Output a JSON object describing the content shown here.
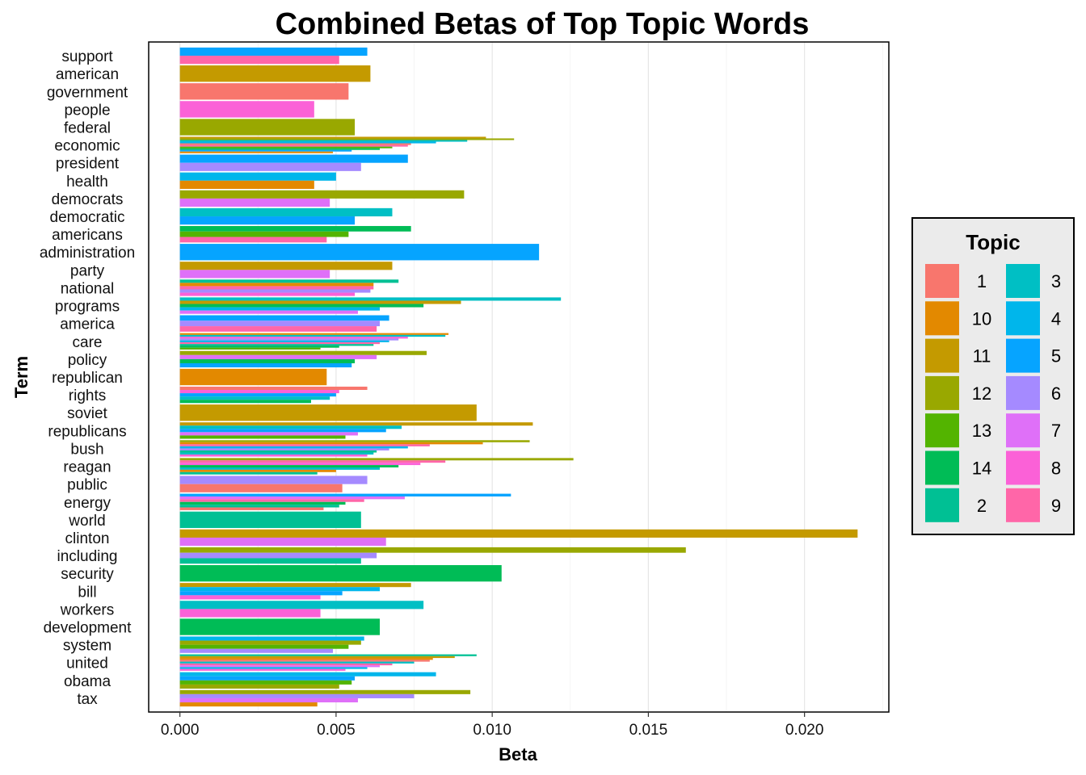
{
  "chart_data": {
    "type": "bar",
    "orientation": "horizontal",
    "title": "Combined Betas of Top Topic Words",
    "xlabel": "Beta",
    "ylabel": "Term",
    "xlim": [
      -0.001,
      0.0227
    ],
    "xticks": [
      "0.000",
      "0.005",
      "0.010",
      "0.015",
      "0.020"
    ],
    "xtick_values": [
      0,
      0.005,
      0.01,
      0.015,
      0.02
    ],
    "grid": true,
    "legend": {
      "title": "Topic",
      "position": "right",
      "entries": [
        {
          "name": "1",
          "color": "#F8766D"
        },
        {
          "name": "10",
          "color": "#E38900"
        },
        {
          "name": "11",
          "color": "#C49A00"
        },
        {
          "name": "12",
          "color": "#99A800"
        },
        {
          "name": "13",
          "color": "#53B400"
        },
        {
          "name": "14",
          "color": "#00BC56"
        },
        {
          "name": "2",
          "color": "#00C094"
        },
        {
          "name": "3",
          "color": "#00BFC4"
        },
        {
          "name": "4",
          "color": "#00B6EB"
        },
        {
          "name": "5",
          "color": "#06A4FF"
        },
        {
          "name": "6",
          "color": "#A58AFF"
        },
        {
          "name": "7",
          "color": "#DF70F8"
        },
        {
          "name": "8",
          "color": "#FB61D7"
        },
        {
          "name": "9",
          "color": "#FF66A8"
        }
      ]
    },
    "terms": [
      {
        "term": "support",
        "bars": [
          [
            "5",
            0.006
          ],
          [
            "9",
            0.0051
          ]
        ]
      },
      {
        "term": "american",
        "bars": [
          [
            "11",
            0.0061
          ]
        ]
      },
      {
        "term": "government",
        "bars": [
          [
            "1",
            0.0054
          ]
        ]
      },
      {
        "term": "people",
        "bars": [
          [
            "8",
            0.0043
          ]
        ]
      },
      {
        "term": "federal",
        "bars": [
          [
            "12",
            0.0056
          ]
        ]
      },
      {
        "term": "economic",
        "bars": [
          [
            "11",
            0.0098
          ],
          [
            "12",
            0.0107
          ],
          [
            "3",
            0.0092
          ],
          [
            "4",
            0.0082
          ],
          [
            "1",
            0.0074
          ],
          [
            "9",
            0.0073
          ],
          [
            "13",
            0.0068
          ],
          [
            "14",
            0.0064
          ],
          [
            "5",
            0.0055
          ],
          [
            "10",
            0.0049
          ]
        ]
      },
      {
        "term": "president",
        "bars": [
          [
            "5",
            0.0073
          ],
          [
            "6",
            0.0058
          ]
        ]
      },
      {
        "term": "health",
        "bars": [
          [
            "4",
            0.005
          ],
          [
            "10",
            0.0043
          ]
        ]
      },
      {
        "term": "democrats",
        "bars": [
          [
            "12",
            0.0091
          ],
          [
            "7",
            0.0048
          ]
        ]
      },
      {
        "term": "democratic",
        "bars": [
          [
            "3",
            0.0068
          ],
          [
            "5",
            0.0056
          ]
        ]
      },
      {
        "term": "americans",
        "bars": [
          [
            "14",
            0.0074
          ],
          [
            "13",
            0.0054
          ],
          [
            "9",
            0.0047
          ]
        ]
      },
      {
        "term": "administration",
        "bars": [
          [
            "5",
            0.0115
          ]
        ]
      },
      {
        "term": "party",
        "bars": [
          [
            "11",
            0.0068
          ],
          [
            "7",
            0.0048
          ]
        ]
      },
      {
        "term": "national",
        "bars": [
          [
            "2",
            0.007
          ],
          [
            "10",
            0.0062
          ],
          [
            "9",
            0.0062
          ],
          [
            "6",
            0.0061
          ],
          [
            "8",
            0.0056
          ]
        ]
      },
      {
        "term": "programs",
        "bars": [
          [
            "3",
            0.0122
          ],
          [
            "11",
            0.009
          ],
          [
            "14",
            0.0078
          ],
          [
            "4",
            0.0064
          ],
          [
            "7",
            0.0057
          ]
        ]
      },
      {
        "term": "america",
        "bars": [
          [
            "5",
            0.0067
          ],
          [
            "6",
            0.0064
          ],
          [
            "9",
            0.0063
          ]
        ]
      },
      {
        "term": "care",
        "bars": [
          [
            "10",
            0.0086
          ],
          [
            "3",
            0.0085
          ],
          [
            "8",
            0.0073
          ],
          [
            "6",
            0.007
          ],
          [
            "4",
            0.0067
          ],
          [
            "9",
            0.0064
          ],
          [
            "2",
            0.0062
          ],
          [
            "14",
            0.0051
          ],
          [
            "13",
            0.0045
          ]
        ]
      },
      {
        "term": "policy",
        "bars": [
          [
            "12",
            0.0079
          ],
          [
            "7",
            0.0063
          ],
          [
            "14",
            0.0056
          ],
          [
            "5",
            0.0055
          ]
        ]
      },
      {
        "term": "republican",
        "bars": [
          [
            "10",
            0.0047
          ]
        ]
      },
      {
        "term": "rights",
        "bars": [
          [
            "1",
            0.006
          ],
          [
            "8",
            0.0051
          ],
          [
            "5",
            0.005
          ],
          [
            "3",
            0.0048
          ],
          [
            "14",
            0.0042
          ]
        ]
      },
      {
        "term": "soviet",
        "bars": [
          [
            "11",
            0.0095
          ]
        ]
      },
      {
        "term": "republicans",
        "bars": [
          [
            "11",
            0.0113
          ],
          [
            "3",
            0.0071
          ],
          [
            "5",
            0.0066
          ],
          [
            "7",
            0.0057
          ],
          [
            "13",
            0.0053
          ]
        ]
      },
      {
        "term": "bush",
        "bars": [
          [
            "12",
            0.0112
          ],
          [
            "10",
            0.0097
          ],
          [
            "9",
            0.008
          ],
          [
            "4",
            0.0073
          ],
          [
            "6",
            0.0067
          ],
          [
            "2",
            0.0063
          ],
          [
            "3",
            0.0062
          ],
          [
            "8",
            0.006
          ]
        ]
      },
      {
        "term": "reagan",
        "bars": [
          [
            "12",
            0.0126
          ],
          [
            "9",
            0.0085
          ],
          [
            "8",
            0.0077
          ],
          [
            "14",
            0.007
          ],
          [
            "3",
            0.0064
          ],
          [
            "10",
            0.005
          ],
          [
            "2",
            0.0044
          ]
        ]
      },
      {
        "term": "public",
        "bars": [
          [
            "6",
            0.006
          ],
          [
            "1",
            0.0052
          ]
        ]
      },
      {
        "term": "energy",
        "bars": [
          [
            "5",
            0.0106
          ],
          [
            "7",
            0.0072
          ],
          [
            "9",
            0.0059
          ],
          [
            "14",
            0.0053
          ],
          [
            "2",
            0.0051
          ],
          [
            "1",
            0.0046
          ]
        ]
      },
      {
        "term": "world",
        "bars": [
          [
            "2",
            0.0058
          ]
        ]
      },
      {
        "term": "clinton",
        "bars": [
          [
            "11",
            0.0217
          ],
          [
            "7",
            0.0066
          ]
        ]
      },
      {
        "term": "including",
        "bars": [
          [
            "12",
            0.0162
          ],
          [
            "6",
            0.0063
          ],
          [
            "2",
            0.0058
          ]
        ]
      },
      {
        "term": "security",
        "bars": [
          [
            "14",
            0.0103
          ]
        ]
      },
      {
        "term": "bill",
        "bars": [
          [
            "11",
            0.0074
          ],
          [
            "4",
            0.0064
          ],
          [
            "5",
            0.0052
          ],
          [
            "8",
            0.0045
          ]
        ]
      },
      {
        "term": "workers",
        "bars": [
          [
            "3",
            0.0078
          ],
          [
            "8",
            0.0045
          ]
        ]
      },
      {
        "term": "development",
        "bars": [
          [
            "14",
            0.0064
          ]
        ]
      },
      {
        "term": "system",
        "bars": [
          [
            "4",
            0.0059
          ],
          [
            "12",
            0.0058
          ],
          [
            "13",
            0.0054
          ],
          [
            "6",
            0.0049
          ]
        ]
      },
      {
        "term": "united",
        "bars": [
          [
            "2",
            0.0095
          ],
          [
            "11",
            0.0088
          ],
          [
            "10",
            0.0081
          ],
          [
            "1",
            0.008
          ],
          [
            "3",
            0.0075
          ],
          [
            "9",
            0.0068
          ],
          [
            "7",
            0.0064
          ],
          [
            "4",
            0.006
          ],
          [
            "8",
            0.0053
          ]
        ]
      },
      {
        "term": "obama",
        "bars": [
          [
            "4",
            0.0082
          ],
          [
            "5",
            0.0056
          ],
          [
            "13",
            0.0055
          ],
          [
            "12",
            0.0051
          ]
        ]
      },
      {
        "term": "tax",
        "bars": [
          [
            "12",
            0.0093
          ],
          [
            "6",
            0.0075
          ],
          [
            "7",
            0.0057
          ],
          [
            "10",
            0.0044
          ]
        ]
      }
    ]
  }
}
